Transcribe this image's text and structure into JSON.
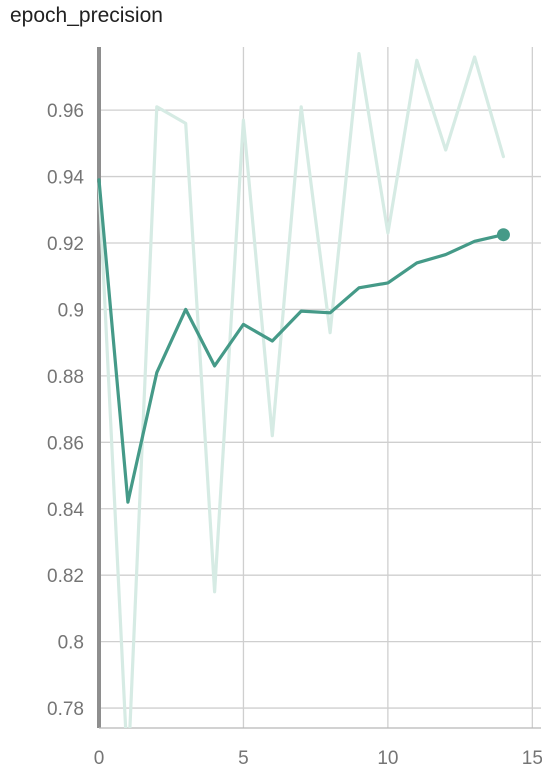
{
  "chart_data": {
    "type": "line",
    "title": "epoch_precision",
    "xlabel": "",
    "ylabel": "",
    "xlim": [
      0,
      15.3
    ],
    "ylim": [
      0.774,
      0.979
    ],
    "x_ticks": [
      0,
      5,
      10,
      15
    ],
    "y_ticks": [
      0.78,
      0.8,
      0.82,
      0.84,
      0.86,
      0.88,
      0.9,
      0.92,
      0.94,
      0.96
    ],
    "y_tick_labels": [
      "0.78",
      "0.8",
      "0.82",
      "0.84",
      "0.86",
      "0.88",
      "0.9",
      "0.92",
      "0.94",
      "0.96"
    ],
    "grid": true,
    "series": [
      {
        "role": "raw",
        "color": "#d6ebe4",
        "x": [
          0,
          1,
          2,
          3,
          4,
          5,
          6,
          7,
          8,
          9,
          10,
          11,
          12,
          13,
          14
        ],
        "values": [
          0.938,
          0.76,
          0.961,
          0.956,
          0.815,
          0.957,
          0.862,
          0.961,
          0.893,
          0.977,
          0.923,
          0.975,
          0.948,
          0.976,
          0.946
        ]
      },
      {
        "role": "smoothed",
        "color": "#459a88",
        "x": [
          0,
          1,
          2,
          3,
          4,
          5,
          6,
          7,
          8,
          9,
          10,
          11,
          12,
          13,
          14
        ],
        "values": [
          0.939,
          0.842,
          0.881,
          0.9,
          0.883,
          0.8955,
          0.8905,
          0.8995,
          0.899,
          0.9065,
          0.908,
          0.914,
          0.9165,
          0.9205,
          0.9225
        ]
      }
    ]
  }
}
